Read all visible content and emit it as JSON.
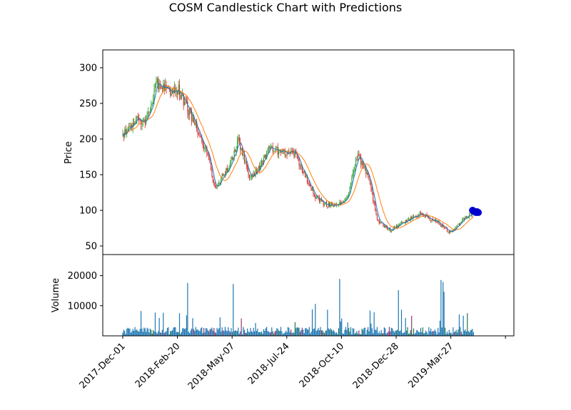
{
  "chart_data": {
    "type": "candlestick",
    "title": "COSM Candlestick Chart with Predictions",
    "ylabel_price": "Price",
    "ylabel_volume": "Volume",
    "xlabel": "",
    "x_tick_labels": [
      "2017-Dec-01",
      "2018-Feb-20",
      "2018-May-07",
      "2018-Jul-24",
      "2018-Oct-10",
      "2018-Dec-28",
      "2019-Mar-27"
    ],
    "price_ylim": [
      38,
      325
    ],
    "price_yticks": [
      50,
      100,
      150,
      200,
      250,
      300
    ],
    "volume_ylim": [
      0,
      27000
    ],
    "volume_yticks": [
      10000,
      20000
    ],
    "colors": {
      "up": "#2ca02c",
      "down": "#d62728",
      "ma_short": "#1f77b4",
      "ma_long": "#ff7f0e",
      "volume": "#1f77b4",
      "volume_down": "#8c3a6e",
      "volume_up": "#1a7a4a",
      "prediction": "#0000cc"
    },
    "price_series_approx": [
      {
        "x": "2017-Dec-01",
        "y": 205
      },
      {
        "x": "2017-Dec-20",
        "y": 225
      },
      {
        "x": "2018-Jan-05",
        "y": 228
      },
      {
        "x": "2018-Jan-20",
        "y": 278
      },
      {
        "x": "2018-Feb-01",
        "y": 268
      },
      {
        "x": "2018-Feb-20",
        "y": 270
      },
      {
        "x": "2018-Mar-05",
        "y": 245
      },
      {
        "x": "2018-Mar-20",
        "y": 215
      },
      {
        "x": "2018-Apr-05",
        "y": 175
      },
      {
        "x": "2018-Apr-15",
        "y": 130
      },
      {
        "x": "2018-May-07",
        "y": 165
      },
      {
        "x": "2018-May-20",
        "y": 198
      },
      {
        "x": "2018-Jun-05",
        "y": 145
      },
      {
        "x": "2018-Jun-20",
        "y": 160
      },
      {
        "x": "2018-Jul-05",
        "y": 188
      },
      {
        "x": "2018-Jul-24",
        "y": 180
      },
      {
        "x": "2018-Aug-10",
        "y": 180
      },
      {
        "x": "2018-Aug-25",
        "y": 150
      },
      {
        "x": "2018-Sep-10",
        "y": 118
      },
      {
        "x": "2018-Sep-25",
        "y": 108
      },
      {
        "x": "2018-Oct-10",
        "y": 108
      },
      {
        "x": "2018-Oct-25",
        "y": 115
      },
      {
        "x": "2018-Nov-10",
        "y": 178
      },
      {
        "x": "2018-Nov-25",
        "y": 150
      },
      {
        "x": "2018-Dec-10",
        "y": 85
      },
      {
        "x": "2018-Dec-28",
        "y": 72
      },
      {
        "x": "2019-Jan-20",
        "y": 85
      },
      {
        "x": "2019-Feb-10",
        "y": 95
      },
      {
        "x": "2019-Mar-05",
        "y": 85
      },
      {
        "x": "2019-Mar-27",
        "y": 68
      },
      {
        "x": "2019-Apr-15",
        "y": 88
      },
      {
        "x": "2019-Apr-30",
        "y": 98
      }
    ],
    "predictions_approx": [
      100,
      99,
      98,
      97,
      98,
      97
    ]
  }
}
